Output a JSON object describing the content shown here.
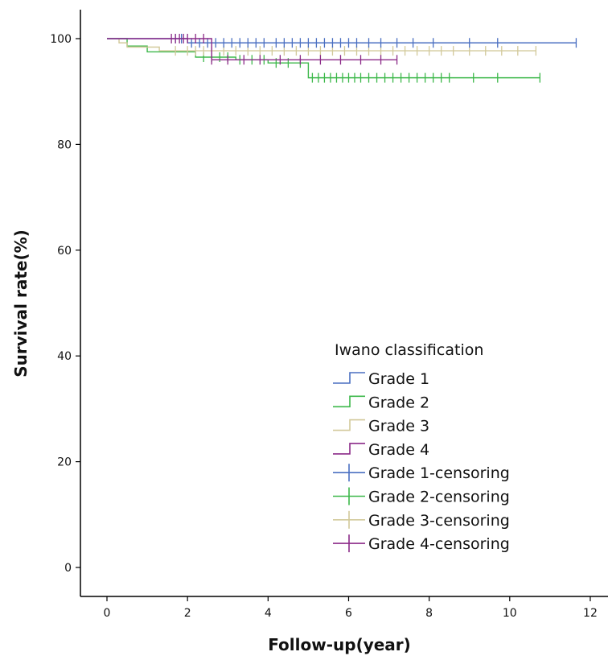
{
  "chart_data": {
    "type": "line",
    "title": "",
    "xlabel": "Follow-up(year)",
    "ylabel": "Survival rate(%)",
    "xlim": [
      -0.6,
      12.6
    ],
    "ylim": [
      -6,
      106
    ],
    "x_ticks": [
      0,
      2,
      4,
      6,
      8,
      10,
      12
    ],
    "y_ticks": [
      0,
      20,
      40,
      60,
      80,
      100
    ],
    "grid": false,
    "legend": {
      "title": "Iwano classification",
      "placement": "bottom-right",
      "entries": [
        "Grade 1",
        "Grade 2",
        "Grade 3",
        "Grade 4",
        "Grade 1-censoring",
        "Grade 2-censoring",
        "Grade 3-censoring",
        "Grade 4-censoring"
      ]
    },
    "series": [
      {
        "name": "Grade 1",
        "color": "#4a6fc1",
        "steps": [
          [
            0,
            100
          ],
          [
            1.6,
            100
          ],
          [
            2.0,
            99.2
          ],
          [
            11.65,
            99.2
          ]
        ],
        "censored": [
          1.7,
          1.85,
          2.1,
          2.3,
          2.5,
          2.7,
          2.9,
          3.1,
          3.3,
          3.5,
          3.7,
          3.9,
          4.2,
          4.4,
          4.6,
          4.8,
          5.0,
          5.2,
          5.4,
          5.6,
          5.8,
          6.0,
          6.2,
          6.5,
          6.8,
          7.2,
          7.6,
          8.1,
          9.0,
          9.7,
          11.65
        ]
      },
      {
        "name": "Grade 2",
        "color": "#3cb84a",
        "steps": [
          [
            0,
            100
          ],
          [
            0.5,
            98.6
          ],
          [
            1.0,
            97.5
          ],
          [
            2.2,
            96.5
          ],
          [
            3.2,
            96.0
          ],
          [
            4.0,
            95.4
          ],
          [
            5.0,
            92.6
          ],
          [
            10.75,
            92.6
          ]
        ],
        "censored": [
          2.4,
          2.6,
          2.8,
          3.0,
          3.3,
          3.6,
          3.9,
          4.2,
          4.5,
          4.8,
          5.1,
          5.25,
          5.4,
          5.55,
          5.7,
          5.85,
          6.0,
          6.15,
          6.3,
          6.5,
          6.7,
          6.9,
          7.1,
          7.3,
          7.5,
          7.7,
          7.9,
          8.1,
          8.3,
          8.5,
          9.1,
          9.7,
          10.75
        ]
      },
      {
        "name": "Grade 3",
        "color": "#d2c99a",
        "steps": [
          [
            0,
            100
          ],
          [
            0.3,
            99.2
          ],
          [
            0.5,
            98.4
          ],
          [
            1.3,
            97.7
          ],
          [
            10.65,
            97.7
          ]
        ],
        "censored": [
          1.7,
          2.0,
          2.2,
          2.4,
          2.6,
          2.9,
          3.2,
          3.5,
          3.8,
          4.1,
          4.4,
          4.7,
          5.0,
          5.3,
          5.6,
          5.9,
          6.2,
          6.5,
          6.8,
          7.1,
          7.4,
          7.7,
          8.0,
          8.3,
          8.6,
          9.0,
          9.4,
          9.8,
          10.2,
          10.65
        ]
      },
      {
        "name": "Grade 4",
        "color": "#8b2a88",
        "steps": [
          [
            0,
            100
          ],
          [
            2.6,
            100
          ],
          [
            2.6,
            96.0
          ],
          [
            7.2,
            96.0
          ]
        ],
        "censored": [
          1.6,
          1.7,
          1.8,
          1.9,
          2.0,
          2.2,
          2.4,
          2.6,
          3.0,
          3.4,
          3.8,
          4.3,
          4.8,
          5.3,
          5.8,
          6.3,
          6.8,
          7.2
        ]
      }
    ]
  }
}
